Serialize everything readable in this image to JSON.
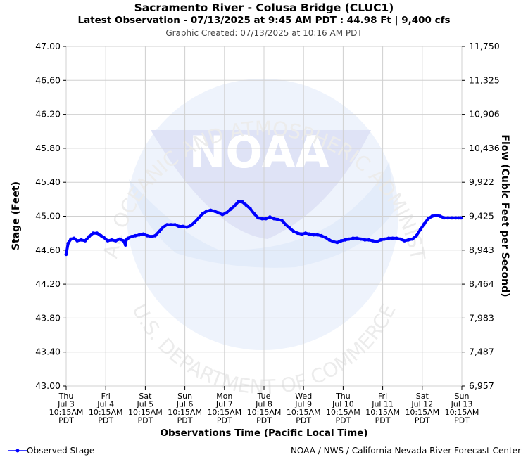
{
  "header": {
    "title": "Sacramento River - Colusa Bridge (CLUC1)",
    "subtitle": "Latest Observation - 07/13/2025 at 9:45 AM PDT : 44.98 Ft | 9,400 cfs",
    "created": "Graphic Created: 07/13/2025 at 10:16 AM PDT"
  },
  "watermark": {
    "logo_text": "NOAA",
    "ring_top": "NATIONAL OCEANIC AND ATMOSPHERIC ADMINISTRATION",
    "ring_bottom": "U.S. DEPARTMENT OF COMMERCE"
  },
  "legend": {
    "label": "Observed Stage"
  },
  "footer": {
    "credit": "NOAA / NWS / California Nevada River Forecast Center"
  },
  "colors": {
    "series": "#0000ff",
    "grid": "#d0d0d0",
    "watermark": "#e6ebf8"
  },
  "chart_data": {
    "type": "line",
    "xlabel": "Observations Time (Pacific Local Time)",
    "ylabel": "Stage (Feet)",
    "y2label": "Flow (Cubic Feet per Second)",
    "ylim": [
      43.0,
      47.0
    ],
    "xlim": [
      0,
      10
    ],
    "grid": true,
    "legend_position": "bottom-left",
    "y_ticks": [
      "43.00",
      "43.40",
      "43.80",
      "44.20",
      "44.60",
      "45.00",
      "45.40",
      "45.80",
      "46.20",
      "46.60",
      "47.00"
    ],
    "y2_ticks": [
      "6,957",
      "7,487",
      "7,983",
      "8,464",
      "8,943",
      "9,425",
      "9,922",
      "10,436",
      "10,906",
      "11,325",
      "11,750"
    ],
    "x_ticks": [
      {
        "day": "Thu",
        "date": "Jul 3",
        "time": "10:15AM",
        "tz": "PDT"
      },
      {
        "day": "Fri",
        "date": "Jul 4",
        "time": "10:15AM",
        "tz": "PDT"
      },
      {
        "day": "Sat",
        "date": "Jul 5",
        "time": "10:15AM",
        "tz": "PDT"
      },
      {
        "day": "Sun",
        "date": "Jul 6",
        "time": "10:15AM",
        "tz": "PDT"
      },
      {
        "day": "Mon",
        "date": "Jul 7",
        "time": "10:15AM",
        "tz": "PDT"
      },
      {
        "day": "Tue",
        "date": "Jul 8",
        "time": "10:15AM",
        "tz": "PDT"
      },
      {
        "day": "Wed",
        "date": "Jul 9",
        "time": "10:15AM",
        "tz": "PDT"
      },
      {
        "day": "Thu",
        "date": "Jul 10",
        "time": "10:15AM",
        "tz": "PDT"
      },
      {
        "day": "Fri",
        "date": "Jul 11",
        "time": "10:15AM",
        "tz": "PDT"
      },
      {
        "day": "Sat",
        "date": "Jul 12",
        "time": "10:15AM",
        "tz": "PDT"
      },
      {
        "day": "Sun",
        "date": "Jul 13",
        "time": "10:15AM",
        "tz": "PDT"
      }
    ],
    "series": [
      {
        "name": "Observed Stage",
        "x": [
          0.0,
          0.05,
          0.12,
          0.2,
          0.28,
          0.38,
          0.48,
          0.58,
          0.68,
          0.78,
          0.88,
          0.95,
          1.05,
          1.15,
          1.25,
          1.35,
          1.45,
          1.5,
          1.52,
          1.56,
          1.65,
          1.75,
          1.85,
          1.95,
          2.05,
          2.15,
          2.25,
          2.35,
          2.45,
          2.55,
          2.65,
          2.75,
          2.85,
          2.95,
          3.05,
          3.15,
          3.25,
          3.35,
          3.45,
          3.55,
          3.65,
          3.75,
          3.85,
          3.95,
          4.05,
          4.15,
          4.25,
          4.35,
          4.45,
          4.55,
          4.65,
          4.75,
          4.85,
          4.95,
          5.05,
          5.15,
          5.25,
          5.35,
          5.45,
          5.55,
          5.65,
          5.75,
          5.85,
          5.95,
          6.05,
          6.15,
          6.25,
          6.35,
          6.45,
          6.55,
          6.65,
          6.75,
          6.85,
          6.95,
          7.05,
          7.15,
          7.25,
          7.35,
          7.45,
          7.55,
          7.65,
          7.75,
          7.85,
          7.95,
          8.05,
          8.15,
          8.25,
          8.35,
          8.45,
          8.55,
          8.65,
          8.75,
          8.85,
          8.95,
          9.05,
          9.15,
          9.25,
          9.35,
          9.45,
          9.55,
          9.65,
          9.75,
          9.85,
          9.92,
          9.98
        ],
        "y": [
          44.55,
          44.68,
          44.73,
          44.74,
          44.71,
          44.72,
          44.71,
          44.76,
          44.8,
          44.8,
          44.77,
          44.75,
          44.71,
          44.72,
          44.71,
          44.73,
          44.71,
          44.66,
          44.72,
          44.74,
          44.76,
          44.77,
          44.78,
          44.79,
          44.77,
          44.76,
          44.77,
          44.82,
          44.87,
          44.9,
          44.9,
          44.9,
          44.88,
          44.88,
          44.87,
          44.89,
          44.93,
          44.98,
          45.03,
          45.06,
          45.07,
          45.06,
          45.04,
          45.02,
          45.04,
          45.08,
          45.12,
          45.17,
          45.17,
          45.13,
          45.09,
          45.03,
          44.98,
          44.97,
          44.97,
          44.99,
          44.97,
          44.96,
          44.95,
          44.9,
          44.86,
          44.82,
          44.8,
          44.79,
          44.8,
          44.79,
          44.78,
          44.78,
          44.77,
          44.75,
          44.72,
          44.7,
          44.69,
          44.71,
          44.72,
          44.73,
          44.74,
          44.74,
          44.73,
          44.72,
          44.72,
          44.71,
          44.7,
          44.72,
          44.73,
          44.74,
          44.74,
          44.74,
          44.73,
          44.71,
          44.72,
          44.73,
          44.77,
          44.84,
          44.91,
          44.97,
          45.0,
          45.01,
          45.0,
          44.98,
          44.98,
          44.98,
          44.98,
          44.98,
          44.98
        ]
      }
    ]
  }
}
